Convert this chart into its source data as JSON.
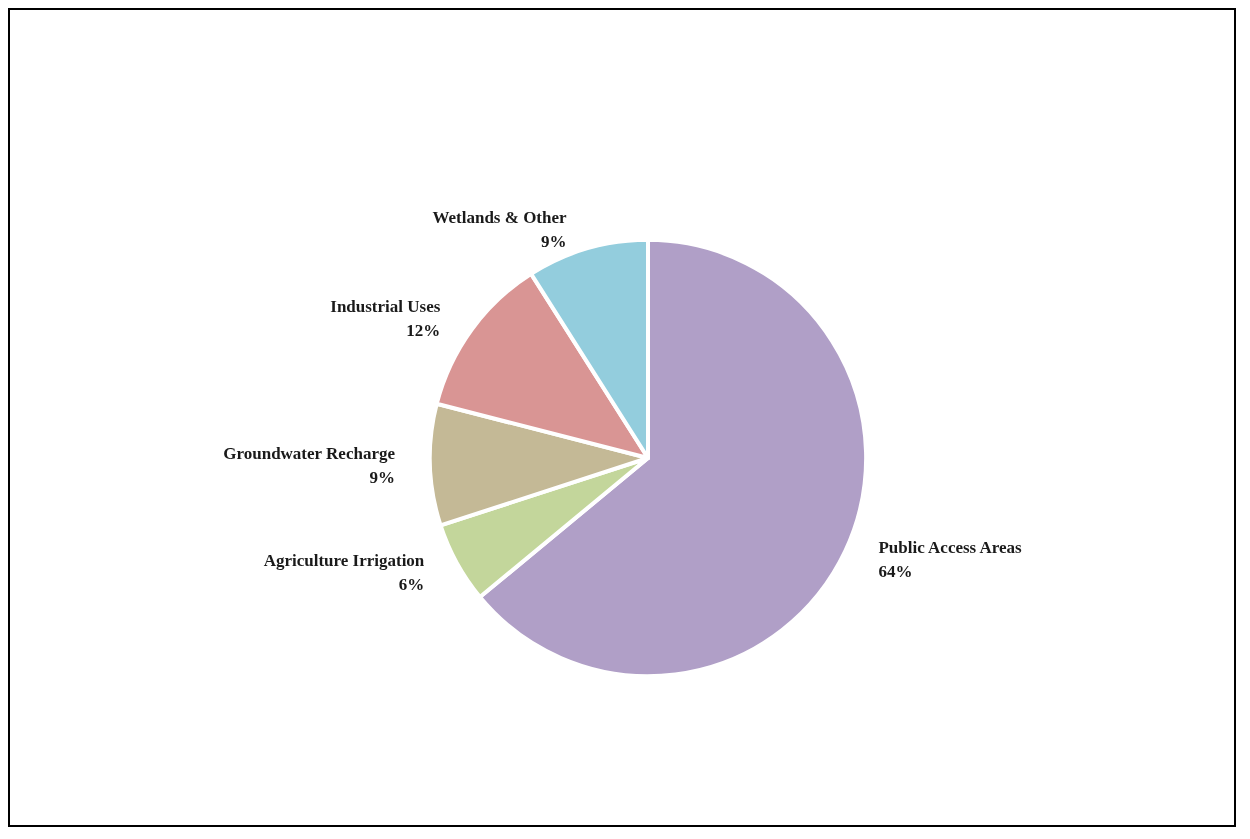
{
  "chart_data": {
    "type": "pie",
    "categories": [
      "Public Access Areas",
      "Agriculture Irrigation",
      "Groundwater Recharge",
      "Industrial Uses",
      "Wetlands & Other"
    ],
    "values": [
      64,
      6,
      9,
      12,
      9
    ],
    "colors": [
      "#b09fc7",
      "#c3d69b",
      "#c4b996",
      "#d99594",
      "#93cddd"
    ],
    "value_labels": [
      "64%",
      "6%",
      "9%",
      "12%",
      "9%"
    ],
    "legend": false
  }
}
